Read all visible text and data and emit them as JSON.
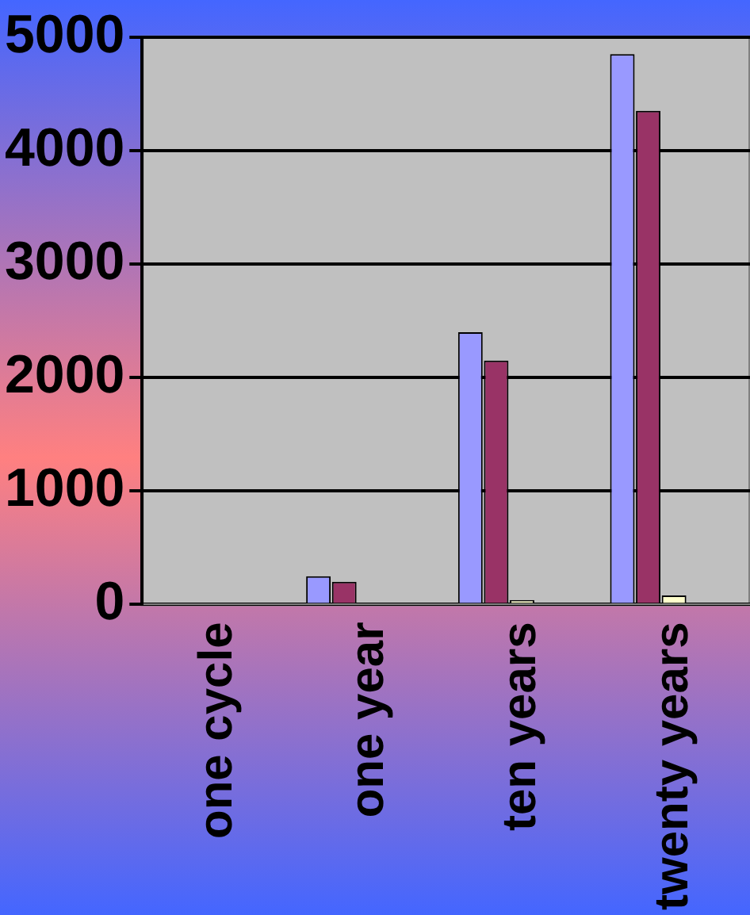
{
  "chart_data": {
    "type": "bar",
    "categories": [
      "one cycle",
      "one year",
      "ten years",
      "twenty years"
    ],
    "series": [
      {
        "color": "#9999ff",
        "values": [
          0,
          250,
          2400,
          4850
        ]
      },
      {
        "color": "#993366",
        "values": [
          0,
          200,
          2150,
          4350
        ]
      },
      {
        "color": "#ffffcc",
        "values": [
          0,
          0,
          40,
          80
        ]
      },
      {
        "color": "#ccffff",
        "values": [
          0,
          0,
          0,
          0
        ]
      },
      {
        "color": "#660066",
        "values": [
          0,
          0,
          0,
          0
        ]
      }
    ],
    "ylim": [
      0,
      5000
    ],
    "yticks": [
      0,
      1000,
      2000,
      3000,
      4000,
      5000
    ],
    "grid": "y",
    "legend": false
  }
}
